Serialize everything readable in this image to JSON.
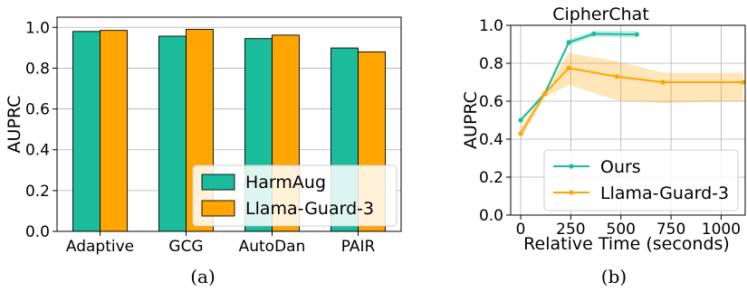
{
  "chart_data": [
    {
      "type": "bar",
      "categories": [
        "Adaptive",
        "GCG",
        "AutoDan",
        "PAIR"
      ],
      "ylabel": "AUPRC",
      "ylim": [
        0,
        1.05
      ],
      "yticks": [
        "0.0",
        "0.2",
        "0.4",
        "0.6",
        "0.8",
        "1.0"
      ],
      "grid": "horizontal",
      "legend_position": "lower-right",
      "caption": "(a)",
      "series": [
        {
          "name": "HarmAug",
          "color": "#1ABC9C",
          "values": [
            0.98,
            0.957,
            0.945,
            0.899
          ]
        },
        {
          "name": "Llama-Guard-3",
          "color": "#FFA500",
          "values": [
            0.985,
            0.99,
            0.962,
            0.88
          ]
        }
      ]
    },
    {
      "type": "line",
      "title": "CipherChat",
      "xlabel": "Relative Time (seconds)",
      "ylabel": "AUPRC",
      "xlim": [
        -50,
        1120
      ],
      "ylim": [
        0,
        1.0
      ],
      "xticks": [
        "0",
        "250",
        "500",
        "750",
        "1000"
      ],
      "yticks": [
        "0.0",
        "0.2",
        "0.4",
        "0.6",
        "0.8",
        "1.0"
      ],
      "grid": "both",
      "legend_position": "lower-right",
      "caption": "(b)",
      "series": [
        {
          "name": "Ours",
          "color": "#1ABC9C",
          "x": [
            0,
            120,
            240,
            365,
            580
          ],
          "y": [
            0.5,
            0.64,
            0.91,
            0.955,
            0.952
          ],
          "lower": [
            0.49,
            0.63,
            0.895,
            0.94,
            0.935
          ],
          "upper": [
            0.51,
            0.65,
            0.925,
            0.97,
            0.97
          ]
        },
        {
          "name": "Llama-Guard-3",
          "color": "#FFA500",
          "x": [
            0,
            120,
            240,
            480,
            710,
            1110
          ],
          "y": [
            0.43,
            0.64,
            0.775,
            0.73,
            0.7,
            0.7
          ],
          "lower": [
            0.4,
            0.62,
            0.685,
            0.605,
            0.59,
            0.6
          ],
          "upper": [
            0.46,
            0.66,
            0.855,
            0.81,
            0.75,
            0.75
          ]
        }
      ]
    }
  ]
}
